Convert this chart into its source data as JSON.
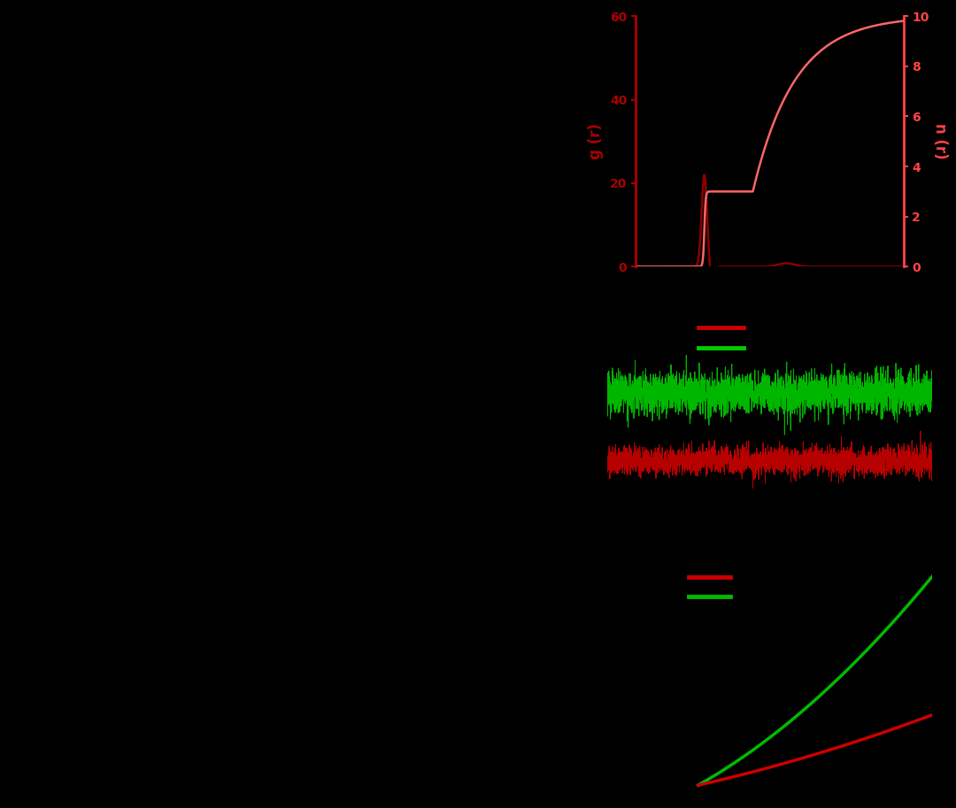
{
  "background_color": "#000000",
  "panel1": {
    "ylim_left": [
      0,
      60
    ],
    "ylim_right": [
      0,
      10
    ],
    "ylabel_left": "g (r)",
    "ylabel_right": "n (r)",
    "color_gr": "#8B0000",
    "color_nr": "#FF6666",
    "yticks_left": [
      0,
      20,
      40,
      60
    ],
    "yticks_right": [
      0,
      2,
      4,
      6,
      8,
      10
    ],
    "axis_color_left": "#AA0000",
    "axis_color_right": "#FF4444"
  },
  "panel2": {
    "color_green": "#00CC00",
    "color_red": "#CC0000"
  },
  "panel3": {
    "color_green": "#00BB00",
    "color_red": "#CC0000"
  },
  "left_bg": "#000000",
  "fig_width": 10.8,
  "fig_height": 9.13,
  "dpi": 100
}
